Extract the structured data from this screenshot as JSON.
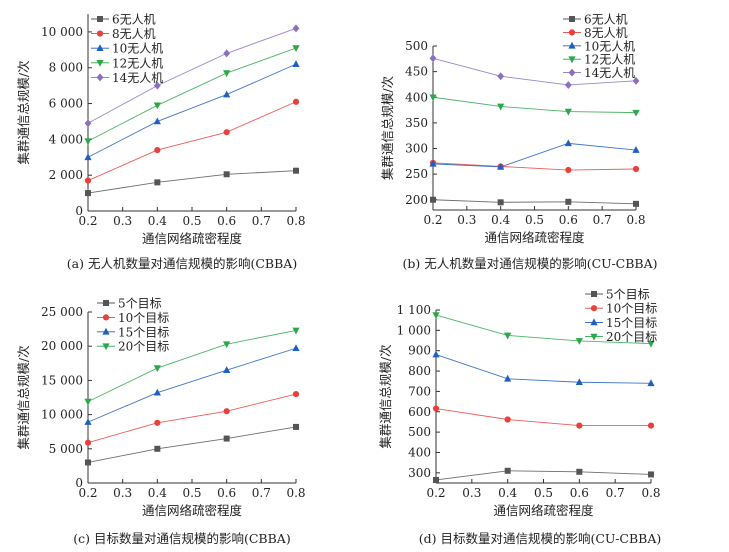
{
  "chart_data": [
    {
      "type": "line",
      "caption": "(a) 无人机数量对通信规模的影响(CBBA)",
      "xlabel": "通信网络疏密程度",
      "ylabel": "集群通信总规模/次",
      "xlim": [
        0.2,
        0.8
      ],
      "ylim": [
        0,
        11000
      ],
      "xticks": [
        "0.2",
        "0.3",
        "0.4",
        "0.5",
        "0.6",
        "0.7",
        "0.8"
      ],
      "yticks": [
        "0",
        "2 000",
        "4 000",
        "6 000",
        "8 000",
        "10 000"
      ],
      "x": [
        0.2,
        0.4,
        0.6,
        0.8
      ],
      "grid": false,
      "legend": "top-left",
      "series": [
        {
          "name": "6无人机",
          "values": [
            1000,
            1600,
            2050,
            2250
          ],
          "color": "#555555",
          "marker": "square"
        },
        {
          "name": "8无人机",
          "values": [
            1700,
            3400,
            4400,
            6100
          ],
          "color": "#e8413d",
          "marker": "circle"
        },
        {
          "name": "10无人机",
          "values": [
            3000,
            5000,
            6500,
            8200
          ],
          "color": "#1f5fbf",
          "marker": "triangle-up"
        },
        {
          "name": "12无人机",
          "values": [
            3900,
            5900,
            7700,
            9100
          ],
          "color": "#2ca84a",
          "marker": "triangle-down"
        },
        {
          "name": "14无人机",
          "values": [
            4900,
            7000,
            8800,
            10200
          ],
          "color": "#8b6fc2",
          "marker": "diamond"
        }
      ]
    },
    {
      "type": "line",
      "caption": "(b) 无人机数量对通信规模的影响(CU-CBBA)",
      "xlabel": "通信网络疏密程度",
      "ylabel": "集群通信总规模/次",
      "xlim": [
        0.2,
        0.8
      ],
      "ylim": [
        180,
        500
      ],
      "xticks": [
        "0.2",
        "0.3",
        "0.4",
        "0.5",
        "0.6",
        "0.7",
        "0.8"
      ],
      "yticks": [
        "200",
        "250",
        "300",
        "350",
        "400",
        "450",
        "500"
      ],
      "x": [
        0.2,
        0.4,
        0.6,
        0.8
      ],
      "grid": false,
      "legend": "top-right",
      "series": [
        {
          "name": "6无人机",
          "values": [
            200,
            195,
            196,
            192
          ],
          "color": "#555555",
          "marker": "square"
        },
        {
          "name": "8无人机",
          "values": [
            272,
            265,
            258,
            260
          ],
          "color": "#e8413d",
          "marker": "circle"
        },
        {
          "name": "10无人机",
          "values": [
            270,
            264,
            310,
            297
          ],
          "color": "#1f5fbf",
          "marker": "triangle-up"
        },
        {
          "name": "12无人机",
          "values": [
            400,
            382,
            372,
            370
          ],
          "color": "#2ca84a",
          "marker": "triangle-down"
        },
        {
          "name": "14无人机",
          "values": [
            476,
            441,
            424,
            432
          ],
          "color": "#8b6fc2",
          "marker": "diamond"
        }
      ]
    },
    {
      "type": "line",
      "caption": "(c) 目标数量对通信规模的影响(CBBA)",
      "xlabel": "通信网络疏密程度",
      "ylabel": "集群通信总规模/次",
      "xlim": [
        0.2,
        0.8
      ],
      "ylim": [
        0,
        25000
      ],
      "xticks": [
        "0.2",
        "0.3",
        "0.4",
        "0.5",
        "0.6",
        "0.7",
        "0.8"
      ],
      "yticks": [
        "0",
        "5 000",
        "10 000",
        "15 000",
        "20 000",
        "25 000"
      ],
      "x": [
        0.2,
        0.4,
        0.6,
        0.8
      ],
      "grid": false,
      "legend": "top-left",
      "series": [
        {
          "name": "5个目标",
          "values": [
            3000,
            5000,
            6500,
            8200
          ],
          "color": "#555555",
          "marker": "square"
        },
        {
          "name": "10个目标",
          "values": [
            5900,
            8800,
            10500,
            13000
          ],
          "color": "#e8413d",
          "marker": "circle"
        },
        {
          "name": "15个目标",
          "values": [
            8900,
            13200,
            16500,
            19700
          ],
          "color": "#1f5fbf",
          "marker": "triangle-up"
        },
        {
          "name": "20个目标",
          "values": [
            11900,
            16800,
            20300,
            22300
          ],
          "color": "#2ca84a",
          "marker": "triangle-down"
        }
      ]
    },
    {
      "type": "line",
      "caption": "(d) 目标数量对通信规模的影响(CU-CBBA)",
      "xlabel": "通信网络疏密程度",
      "ylabel": "集群通信总规模/次",
      "xlim": [
        0.2,
        0.8
      ],
      "ylim": [
        250,
        1100
      ],
      "xticks": [
        "0.2",
        "0.3",
        "0.4",
        "0.5",
        "0.6",
        "0.7",
        "0.8"
      ],
      "yticks": [
        "300",
        "400",
        "500",
        "600",
        "700",
        "800",
        "900",
        "1 000",
        "1 100"
      ],
      "x": [
        0.2,
        0.4,
        0.6,
        0.8
      ],
      "grid": false,
      "legend": "top-right",
      "series": [
        {
          "name": "5个目标",
          "values": [
            265,
            310,
            305,
            292
          ],
          "color": "#555555",
          "marker": "square"
        },
        {
          "name": "10个目标",
          "values": [
            616,
            562,
            532,
            532
          ],
          "color": "#e8413d",
          "marker": "circle"
        },
        {
          "name": "15个目标",
          "values": [
            881,
            762,
            745,
            740
          ],
          "color": "#1f5fbf",
          "marker": "triangle-up"
        },
        {
          "name": "20个目标",
          "values": [
            1075,
            975,
            948,
            935
          ],
          "color": "#2ca84a",
          "marker": "triangle-down"
        }
      ]
    }
  ]
}
